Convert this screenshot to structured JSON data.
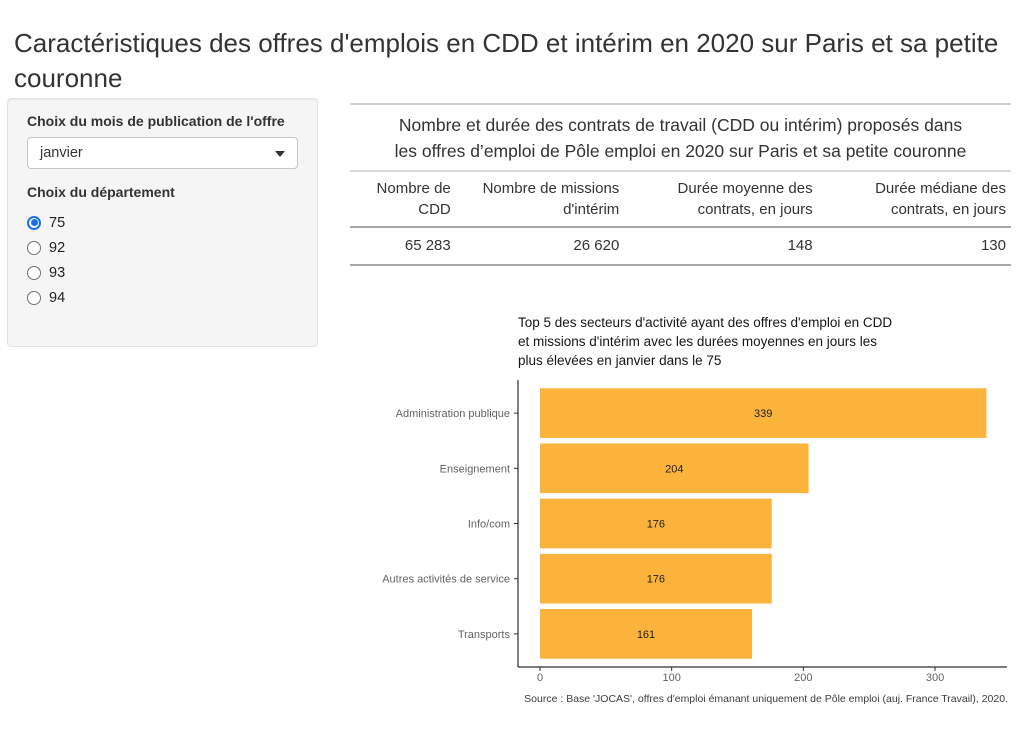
{
  "page_title": "Caractéristiques des offres d'emplois en CDD et intérim en 2020 sur Paris et sa petite couronne",
  "sidebar": {
    "month_label": "Choix du mois de publication de l'offre",
    "month_selected": "janvier",
    "department_label": "Choix du département",
    "departments": [
      {
        "label": "75",
        "selected": true
      },
      {
        "label": "92",
        "selected": false
      },
      {
        "label": "93",
        "selected": false
      },
      {
        "label": "94",
        "selected": false
      }
    ]
  },
  "table": {
    "caption": "Nombre et durée des contrats de travail (CDD ou intérim) proposés dans\nles offres d’emploi de Pôle emploi en 2020 sur Paris et sa petite couronne",
    "columns": [
      "Nombre de CDD",
      "Nombre de missions d'intérim",
      "Durée moyenne des contrats, en jours",
      "Durée médiane des contrats, en jours"
    ],
    "rows": [
      [
        "65 283",
        "26 620",
        "148",
        "130"
      ]
    ]
  },
  "chart_data": {
    "type": "bar",
    "orientation": "horizontal",
    "title": "Top 5 des secteurs d'activité ayant des offres d'emploi en CDD\net missions d'intérim avec les durées moyennes en jours les\nplus élevées en janvier dans le 75",
    "categories": [
      "Administration publique",
      "Enseignement",
      "Info/com",
      "Autres activités de service",
      "Transports"
    ],
    "values": [
      339,
      204,
      176,
      176,
      161
    ],
    "xlabel": "",
    "ylabel": "",
    "xticks": [
      0,
      100,
      200,
      300
    ],
    "xlim": [
      0,
      356
    ],
    "grid": false,
    "legend": false,
    "bar_color": "#FCB33C",
    "caption": "Source : Base 'JOCAS', offres d'emploi émanant uniquement de Pôle emploi (auj. France Travail), 2020."
  },
  "colors": {
    "radio_accent": "#1B70F1",
    "bar": "#FCB33C",
    "sidebar_bg": "#F5F5F5"
  }
}
